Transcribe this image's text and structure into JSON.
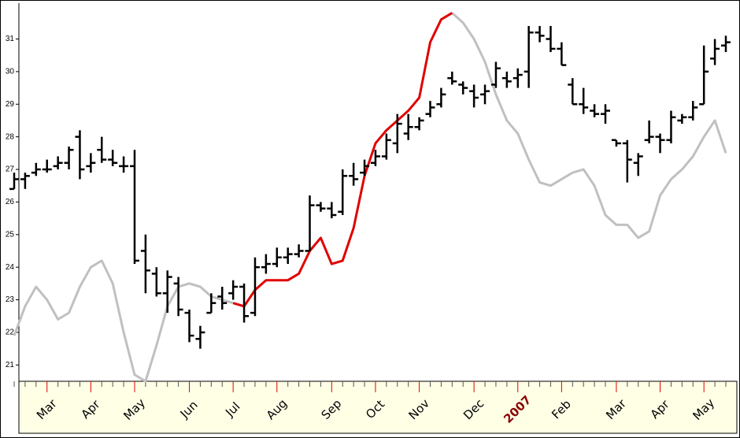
{
  "chart_data": {
    "type": "ohlc",
    "categories": [
      null,
      null,
      null,
      "Mar",
      null,
      null,
      null,
      "Apr",
      null,
      null,
      null,
      "May",
      null,
      null,
      null,
      null,
      "Jun",
      null,
      null,
      null,
      "Jul",
      null,
      null,
      null,
      "Aug",
      null,
      null,
      null,
      null,
      "Sep",
      null,
      null,
      null,
      "Oct",
      null,
      null,
      null,
      "Nov",
      null,
      null,
      null,
      null,
      "Dec",
      null,
      null,
      null,
      "2007",
      null,
      null,
      null,
      "Feb",
      null,
      null,
      null,
      null,
      "Mar",
      null,
      null,
      null,
      "Apr",
      null,
      null,
      null,
      "May",
      null,
      null
    ],
    "open": [
      26.4,
      26.7,
      26.9,
      27.0,
      27.1,
      27.2,
      28.0,
      27.1,
      27.6,
      27.3,
      27.1,
      27.1,
      24.5,
      23.8,
      23.2,
      23.5,
      22.6,
      21.8,
      22.6,
      23.1,
      23.2,
      23.4,
      22.6,
      24.0,
      24.1,
      24.3,
      24.4,
      24.5,
      25.9,
      25.8,
      25.7,
      26.8,
      26.9,
      27.2,
      27.4,
      27.8,
      28.1,
      28.3,
      28.7,
      29.0,
      29.8,
      29.6,
      29.4,
      29.3,
      29.6,
      29.8,
      29.8,
      30.0,
      31.2,
      31.0,
      30.7,
      29.6,
      29.0,
      28.8,
      28.7,
      27.9,
      27.8,
      27.2,
      27.9,
      28.0,
      27.9,
      28.5,
      28.6,
      29.0,
      30.4,
      30.8
    ],
    "high": [
      26.9,
      26.9,
      27.2,
      27.3,
      27.4,
      27.7,
      28.2,
      27.5,
      28.0,
      27.6,
      27.4,
      27.6,
      25.0,
      24.0,
      23.9,
      23.7,
      22.7,
      22.2,
      23.2,
      23.4,
      23.6,
      23.5,
      24.3,
      24.4,
      24.6,
      24.6,
      24.7,
      26.2,
      26.0,
      26.0,
      27.0,
      27.2,
      27.3,
      27.6,
      28.1,
      28.7,
      28.7,
      28.6,
      29.1,
      29.5,
      30.0,
      29.7,
      29.6,
      29.6,
      30.3,
      30.0,
      30.1,
      31.4,
      31.4,
      31.4,
      30.9,
      29.8,
      29.5,
      29.0,
      29.0,
      27.9,
      27.9,
      27.5,
      28.5,
      28.1,
      28.8,
      28.7,
      29.1,
      30.8,
      31.0,
      31.1
    ],
    "low": [
      26.4,
      26.4,
      26.8,
      26.9,
      27.0,
      27.0,
      26.7,
      26.9,
      27.2,
      27.1,
      26.9,
      24.1,
      23.2,
      23.1,
      22.6,
      22.5,
      21.7,
      21.5,
      22.6,
      22.7,
      23.0,
      22.3,
      22.5,
      23.8,
      24.0,
      24.1,
      24.3,
      24.5,
      25.7,
      25.5,
      25.6,
      26.5,
      26.8,
      27.1,
      27.3,
      27.5,
      27.9,
      28.2,
      28.6,
      28.9,
      29.6,
      29.3,
      28.9,
      29.0,
      29.5,
      29.5,
      29.5,
      29.5,
      30.9,
      30.6,
      30.2,
      29.0,
      28.7,
      28.6,
      28.4,
      27.7,
      26.6,
      26.8,
      27.8,
      27.5,
      27.8,
      28.4,
      28.5,
      29.0,
      30.2,
      30.6
    ],
    "close": [
      26.7,
      26.8,
      27.0,
      27.0,
      27.2,
      27.6,
      27.0,
      27.2,
      27.3,
      27.2,
      27.1,
      24.2,
      23.9,
      23.2,
      23.7,
      22.7,
      21.9,
      22.0,
      22.9,
      22.9,
      23.4,
      22.5,
      24.0,
      24.1,
      24.3,
      24.4,
      24.5,
      25.9,
      25.8,
      25.6,
      26.8,
      26.7,
      27.1,
      27.4,
      27.9,
      28.4,
      28.3,
      28.5,
      28.9,
      29.3,
      29.7,
      29.5,
      29.2,
      29.4,
      30.1,
      29.7,
      29.9,
      31.2,
      31.1,
      30.7,
      30.2,
      29.0,
      28.9,
      28.7,
      28.8,
      27.8,
      27.3,
      27.4,
      28.0,
      27.9,
      28.6,
      28.6,
      28.9,
      30.0,
      30.7,
      30.9
    ],
    "color": "#000000",
    "series": [
      {
        "color": "#c0c0c0",
        "values": [
          21.9,
          22.8,
          23.4,
          23.0,
          22.4,
          22.6,
          23.4,
          24.0,
          24.2,
          23.5,
          22.0,
          20.7,
          20.5,
          21.6,
          22.8,
          23.4,
          23.5,
          23.4,
          23.1,
          23.0,
          22.9,
          null,
          null,
          null,
          null,
          null,
          null,
          null,
          null,
          null,
          null,
          null,
          null,
          null,
          null,
          null,
          null,
          null,
          null,
          null,
          31.8,
          31.5,
          31.0,
          30.3,
          29.3,
          28.5,
          28.1,
          27.3,
          26.6,
          26.5,
          26.7,
          26.9,
          27.0,
          26.5,
          25.6,
          25.3,
          25.3,
          24.9,
          25.1,
          26.2,
          26.7,
          27.0,
          27.4,
          28.0,
          28.5,
          27.5
        ]
      },
      {
        "color": "#e00000",
        "values": [
          null,
          null,
          null,
          null,
          null,
          null,
          null,
          null,
          null,
          null,
          null,
          null,
          null,
          null,
          null,
          null,
          null,
          null,
          null,
          null,
          22.9,
          22.8,
          23.3,
          23.6,
          23.6,
          23.6,
          23.8,
          24.5,
          24.9,
          24.1,
          24.2,
          25.2,
          26.8,
          27.8,
          28.2,
          28.5,
          28.8,
          29.2,
          30.9,
          31.6,
          31.8,
          null,
          null,
          null,
          null,
          null,
          null,
          null,
          null,
          null,
          null,
          null,
          null,
          null,
          null,
          null,
          null,
          null,
          null,
          null,
          null,
          null,
          null,
          null,
          null,
          null
        ]
      }
    ],
    "ylim": [
      20.5,
      32.1
    ],
    "yticks": [
      21,
      22,
      23,
      24,
      25,
      26,
      27,
      28,
      29,
      30,
      31
    ]
  }
}
